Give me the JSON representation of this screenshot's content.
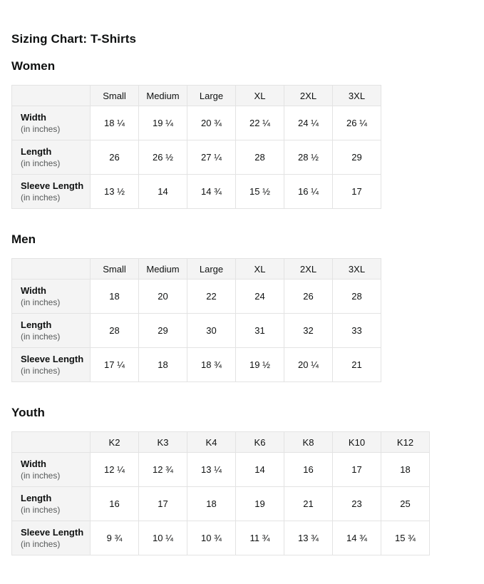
{
  "page": {
    "title": "Sizing Chart: T-Shirts"
  },
  "colors": {
    "header_bg": "#f4f4f4",
    "label_bg": "#f4f4f4",
    "border": "#e3e3e3",
    "text": "#0f1111",
    "muted_text": "#565959",
    "background": "#ffffff"
  },
  "tables": [
    {
      "section": "Women",
      "columns": [
        "Small",
        "Medium",
        "Large",
        "XL",
        "2XL",
        "3XL"
      ],
      "rows": [
        {
          "label": "Width",
          "note": "(in inches)",
          "values": [
            "18 ¼",
            "19 ¼",
            "20 ¾",
            "22 ¼",
            "24 ¼",
            "26 ¼"
          ]
        },
        {
          "label": "Length",
          "note": "(in inches)",
          "values": [
            "26",
            "26 ½",
            "27 ¼",
            "28",
            "28 ½",
            "29"
          ]
        },
        {
          "label": "Sleeve Length",
          "note": "(in inches)",
          "values": [
            "13 ½",
            "14",
            "14 ¾",
            "15 ½",
            "16 ¼",
            "17"
          ]
        }
      ]
    },
    {
      "section": "Men",
      "columns": [
        "Small",
        "Medium",
        "Large",
        "XL",
        "2XL",
        "3XL"
      ],
      "rows": [
        {
          "label": "Width",
          "note": "(in inches)",
          "values": [
            "18",
            "20",
            "22",
            "24",
            "26",
            "28"
          ]
        },
        {
          "label": "Length",
          "note": "(in inches)",
          "values": [
            "28",
            "29",
            "30",
            "31",
            "32",
            "33"
          ]
        },
        {
          "label": "Sleeve Length",
          "note": "(in inches)",
          "values": [
            "17 ¼",
            "18",
            "18 ¾",
            "19 ½",
            "20 ¼",
            "21"
          ]
        }
      ]
    },
    {
      "section": "Youth",
      "columns": [
        "K2",
        "K3",
        "K4",
        "K6",
        "K8",
        "K10",
        "K12"
      ],
      "rows": [
        {
          "label": "Width",
          "note": "(in inches)",
          "values": [
            "12 ¼",
            "12 ¾",
            "13 ¼",
            "14",
            "16",
            "17",
            "18"
          ]
        },
        {
          "label": "Length",
          "note": "(in inches)",
          "values": [
            "16",
            "17",
            "18",
            "19",
            "21",
            "23",
            "25"
          ]
        },
        {
          "label": "Sleeve Length",
          "note": "(in inches)",
          "values": [
            "9 ¾",
            "10 ¼",
            "10 ¾",
            "11 ¾",
            "13 ¾",
            "14 ¾",
            "15 ¾"
          ]
        }
      ]
    }
  ]
}
